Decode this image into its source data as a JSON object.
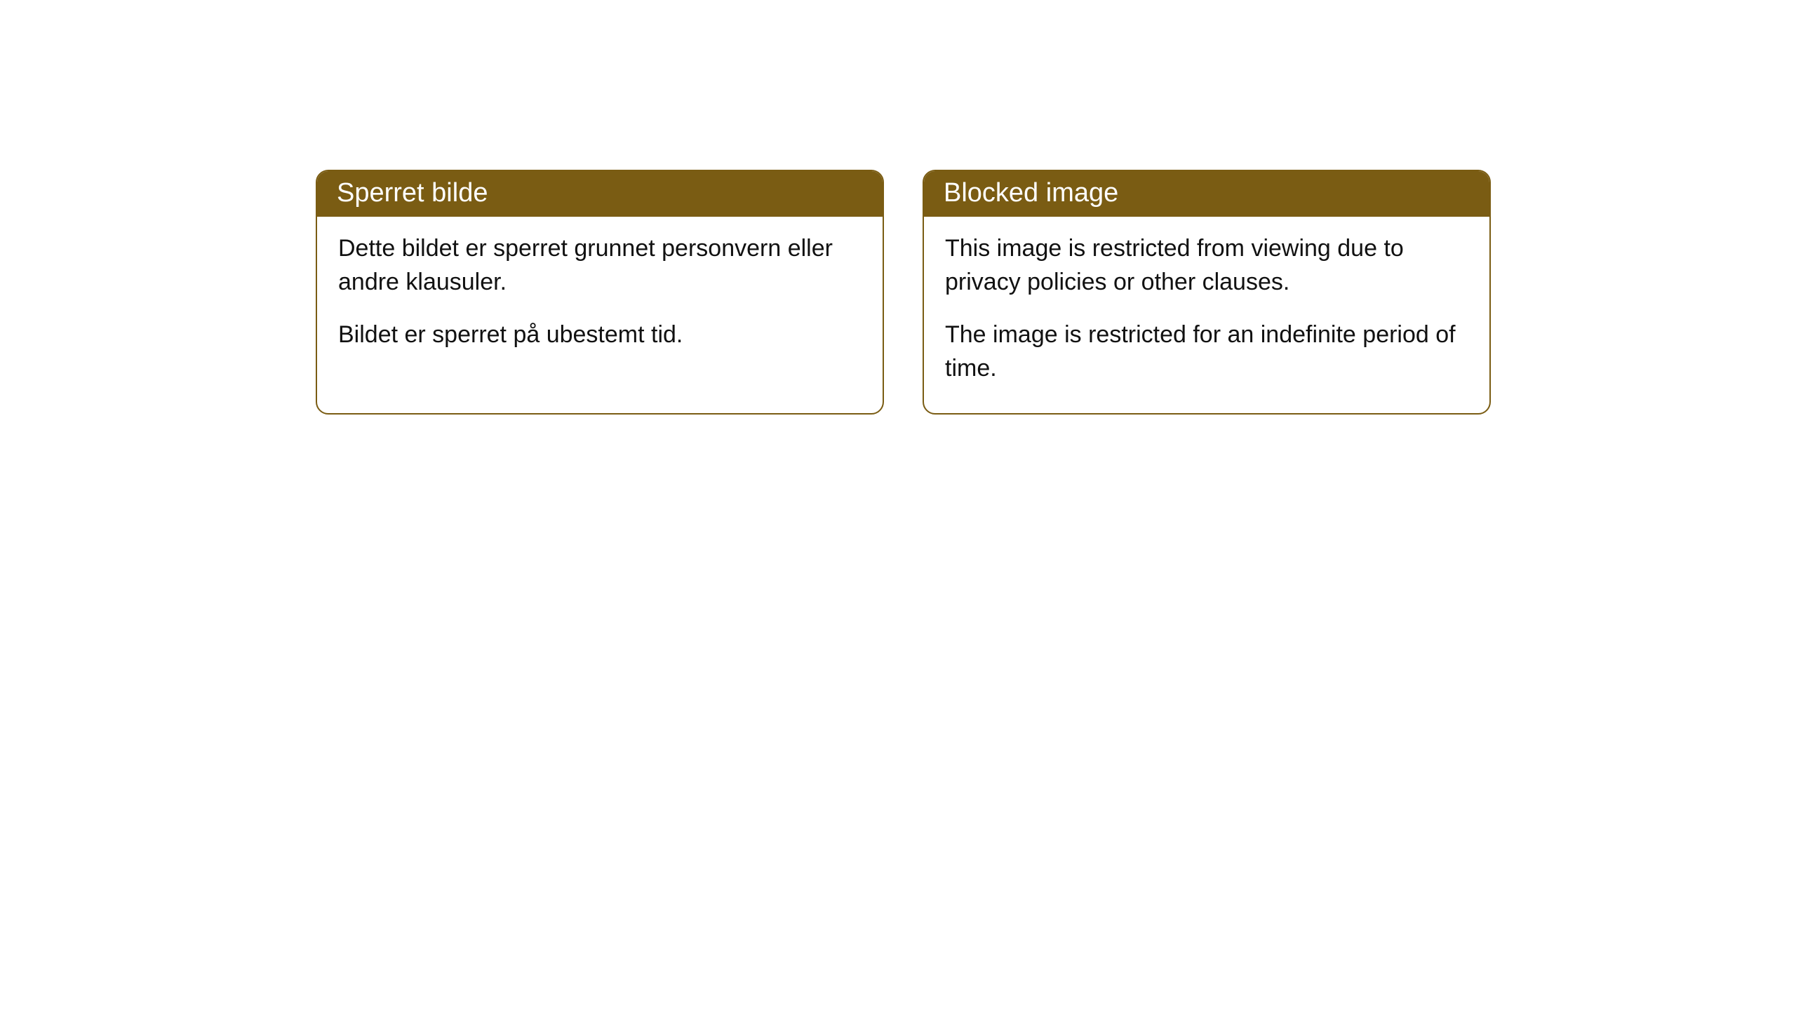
{
  "cards": [
    {
      "title": "Sperret bilde",
      "paragraph1": "Dette bildet er sperret grunnet personvern eller andre klausuler.",
      "paragraph2": "Bildet er sperret på ubestemt tid."
    },
    {
      "title": "Blocked image",
      "paragraph1": "This image is restricted from viewing due to privacy policies or other clauses.",
      "paragraph2": "The image is restricted for an indefinite period of time."
    }
  ],
  "style": {
    "header_bg": "#7a5c13",
    "header_text_color": "#ffffff",
    "border_color": "#7a5c13",
    "body_bg": "#ffffff",
    "body_text_color": "#111111",
    "border_radius": 18,
    "header_fontsize": 38,
    "body_fontsize": 34
  }
}
